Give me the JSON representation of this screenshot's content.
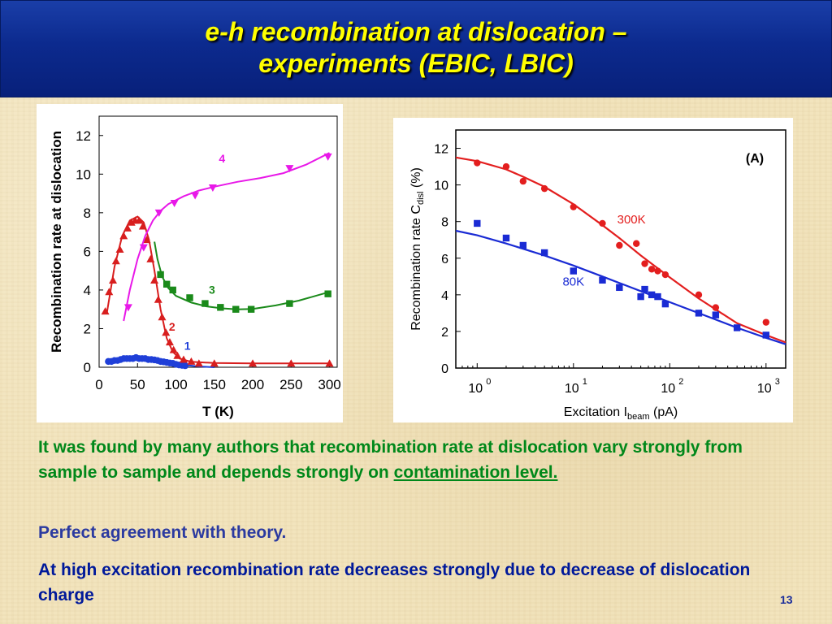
{
  "slide": {
    "title_line1": "e-h recombination at dislocation –",
    "title_line2": "experiments (EBIC, LBIC)",
    "paragraph1_pre": "It was found by many authors that recombination rate at dislocation vary strongly from sample to sample and depends strongly on ",
    "paragraph1_link": "contamination level.",
    "paragraph2": "Perfect agreement with theory.",
    "paragraph3": "At high excitation recombination rate decreases strongly due to decrease of dislocation charge",
    "page_number": "13",
    "colors": {
      "header_bg": "#0c2a8e",
      "title": "#ffff00",
      "para1": "#00881a",
      "para2": "#2b3aa0",
      "para3": "#00199a"
    }
  },
  "chart_data": [
    {
      "type": "line",
      "xlabel": "T (K)",
      "ylabel": "Recombination rate at dislocation",
      "xlim": [
        0,
        310
      ],
      "ylim": [
        0,
        13
      ],
      "xticks": [
        0,
        50,
        100,
        150,
        200,
        250,
        300
      ],
      "yticks": [
        0,
        2,
        4,
        6,
        8,
        10,
        12
      ],
      "series": [
        {
          "name": "1",
          "color": "#1f3fd8",
          "marker": "circle",
          "points": [
            [
              12,
              0.3
            ],
            [
              16,
              0.3
            ],
            [
              20,
              0.35
            ],
            [
              24,
              0.35
            ],
            [
              28,
              0.4
            ],
            [
              32,
              0.45
            ],
            [
              36,
              0.45
            ],
            [
              40,
              0.45
            ],
            [
              44,
              0.45
            ],
            [
              48,
              0.5
            ],
            [
              52,
              0.45
            ],
            [
              56,
              0.45
            ],
            [
              60,
              0.45
            ],
            [
              64,
              0.4
            ],
            [
              68,
              0.4
            ],
            [
              72,
              0.38
            ],
            [
              76,
              0.35
            ],
            [
              80,
              0.3
            ],
            [
              84,
              0.28
            ],
            [
              88,
              0.25
            ],
            [
              92,
              0.22
            ],
            [
              96,
              0.2
            ],
            [
              100,
              0.15
            ],
            [
              104,
              0.12
            ],
            [
              108,
              0.1
            ],
            [
              112,
              0.08
            ]
          ],
          "fit": [
            [
              12,
              0.28
            ],
            [
              30,
              0.4
            ],
            [
              50,
              0.48
            ],
            [
              70,
              0.42
            ],
            [
              90,
              0.28
            ],
            [
              110,
              0.12
            ],
            [
              130,
              0.04
            ],
            [
              150,
              0.0
            ]
          ]
        },
        {
          "name": "2",
          "color": "#d81e1e",
          "marker": "triangle-up",
          "points": [
            [
              8,
              2.9
            ],
            [
              13,
              3.9
            ],
            [
              18,
              4.5
            ],
            [
              22,
              5.5
            ],
            [
              27,
              6.1
            ],
            [
              32,
              6.8
            ],
            [
              37,
              7.2
            ],
            [
              42,
              7.5
            ],
            [
              47,
              7.6
            ],
            [
              52,
              7.6
            ],
            [
              57,
              7.3
            ],
            [
              62,
              6.6
            ],
            [
              67,
              5.6
            ],
            [
              72,
              4.5
            ],
            [
              77,
              3.5
            ],
            [
              82,
              2.6
            ],
            [
              87,
              1.8
            ],
            [
              92,
              1.3
            ],
            [
              97,
              0.9
            ],
            [
              102,
              0.6
            ],
            [
              110,
              0.4
            ],
            [
              120,
              0.3
            ],
            [
              130,
              0.2
            ],
            [
              150,
              0.2
            ],
            [
              200,
              0.2
            ],
            [
              250,
              0.2
            ],
            [
              300,
              0.2
            ]
          ],
          "fit": [
            [
              10,
              2.8
            ],
            [
              20,
              5.2
            ],
            [
              30,
              6.8
            ],
            [
              40,
              7.6
            ],
            [
              50,
              7.8
            ],
            [
              58,
              7.5
            ],
            [
              65,
              6.6
            ],
            [
              72,
              5.0
            ],
            [
              80,
              3.0
            ],
            [
              88,
              1.5
            ],
            [
              96,
              0.8
            ],
            [
              105,
              0.45
            ],
            [
              120,
              0.28
            ],
            [
              150,
              0.22
            ],
            [
              200,
              0.2
            ],
            [
              250,
              0.2
            ],
            [
              300,
              0.2
            ]
          ]
        },
        {
          "name": "3",
          "color": "#1a8a1a",
          "marker": "square",
          "points": [
            [
              80,
              4.8
            ],
            [
              88,
              4.3
            ],
            [
              96,
              4.0
            ],
            [
              118,
              3.6
            ],
            [
              138,
              3.3
            ],
            [
              158,
              3.1
            ],
            [
              178,
              3.0
            ],
            [
              198,
              3.0
            ],
            [
              248,
              3.3
            ],
            [
              298,
              3.8
            ]
          ],
          "fit": [
            [
              72,
              6.5
            ],
            [
              76,
              5.6
            ],
            [
              82,
              4.7
            ],
            [
              90,
              4.1
            ],
            [
              100,
              3.7
            ],
            [
              120,
              3.35
            ],
            [
              140,
              3.15
            ],
            [
              160,
              3.05
            ],
            [
              180,
              3.0
            ],
            [
              200,
              3.02
            ],
            [
              230,
              3.2
            ],
            [
              260,
              3.45
            ],
            [
              300,
              3.9
            ]
          ]
        },
        {
          "name": "4",
          "color": "#e818e8",
          "marker": "triangle-down",
          "points": [
            [
              38,
              3.1
            ],
            [
              58,
              6.2
            ],
            [
              78,
              8.0
            ],
            [
              98,
              8.5
            ],
            [
              125,
              8.9
            ],
            [
              148,
              9.3
            ],
            [
              248,
              10.3
            ],
            [
              298,
              10.9
            ]
          ],
          "fit": [
            [
              32,
              2.4
            ],
            [
              40,
              4.0
            ],
            [
              50,
              5.6
            ],
            [
              60,
              6.8
            ],
            [
              70,
              7.6
            ],
            [
              80,
              8.1
            ],
            [
              90,
              8.45
            ],
            [
              110,
              8.85
            ],
            [
              130,
              9.15
            ],
            [
              150,
              9.35
            ],
            [
              180,
              9.6
            ],
            [
              210,
              9.8
            ],
            [
              240,
              10.05
            ],
            [
              270,
              10.5
            ],
            [
              300,
              11.1
            ]
          ]
        }
      ]
    },
    {
      "type": "scatter",
      "panel_label": "(A)",
      "xlabel": "Excitation I",
      "xlabel_sub": "beam",
      "xlabel_unit": " (pA)",
      "ylabel": "Recombination rate C",
      "ylabel_sub": "disl",
      "ylabel_unit": " (%)",
      "xscale": "log",
      "xlim": [
        0.6,
        1600
      ],
      "ylim": [
        0,
        13
      ],
      "yticks": [
        0,
        2,
        4,
        6,
        8,
        10,
        12
      ],
      "xtick_mantissa": "10",
      "xticks": [
        {
          "exp": "0",
          "v": 1
        },
        {
          "exp": "1",
          "v": 10
        },
        {
          "exp": "2",
          "v": 100
        },
        {
          "exp": "3",
          "v": 1000
        }
      ],
      "series": [
        {
          "name": "300K",
          "color": "#e31e1e",
          "marker": "circle",
          "points": [
            [
              1,
              11.2
            ],
            [
              2,
              11.0
            ],
            [
              3,
              10.2
            ],
            [
              5,
              9.8
            ],
            [
              10,
              8.8
            ],
            [
              20,
              7.9
            ],
            [
              30,
              6.7
            ],
            [
              45,
              6.8
            ],
            [
              55,
              5.7
            ],
            [
              65,
              5.4
            ],
            [
              75,
              5.3
            ],
            [
              90,
              5.1
            ],
            [
              200,
              4.0
            ],
            [
              300,
              3.3
            ],
            [
              1000,
              2.5
            ]
          ],
          "fit": [
            [
              0.6,
              11.5
            ],
            [
              1,
              11.3
            ],
            [
              2,
              10.85
            ],
            [
              3,
              10.45
            ],
            [
              5,
              9.9
            ],
            [
              10,
              8.95
            ],
            [
              20,
              7.8
            ],
            [
              30,
              7.1
            ],
            [
              50,
              6.15
            ],
            [
              100,
              4.95
            ],
            [
              200,
              3.8
            ],
            [
              500,
              2.45
            ],
            [
              1000,
              1.8
            ],
            [
              1600,
              1.4
            ]
          ]
        },
        {
          "name": "80K",
          "color": "#1a2bd4",
          "marker": "square",
          "points": [
            [
              1,
              7.9
            ],
            [
              2,
              7.1
            ],
            [
              3,
              6.7
            ],
            [
              5,
              6.3
            ],
            [
              10,
              5.3
            ],
            [
              20,
              4.8
            ],
            [
              30,
              4.4
            ],
            [
              50,
              3.9
            ],
            [
              55,
              4.3
            ],
            [
              65,
              4.0
            ],
            [
              75,
              3.9
            ],
            [
              90,
              3.5
            ],
            [
              200,
              3.0
            ],
            [
              300,
              2.9
            ],
            [
              500,
              2.2
            ],
            [
              1000,
              1.8
            ]
          ],
          "fit": [
            [
              0.6,
              7.5
            ],
            [
              1,
              7.25
            ],
            [
              2,
              6.8
            ],
            [
              5,
              6.15
            ],
            [
              10,
              5.6
            ],
            [
              20,
              5.0
            ],
            [
              50,
              4.2
            ],
            [
              100,
              3.6
            ],
            [
              200,
              3.0
            ],
            [
              500,
              2.2
            ],
            [
              1000,
              1.65
            ],
            [
              1600,
              1.3
            ]
          ]
        }
      ]
    }
  ]
}
